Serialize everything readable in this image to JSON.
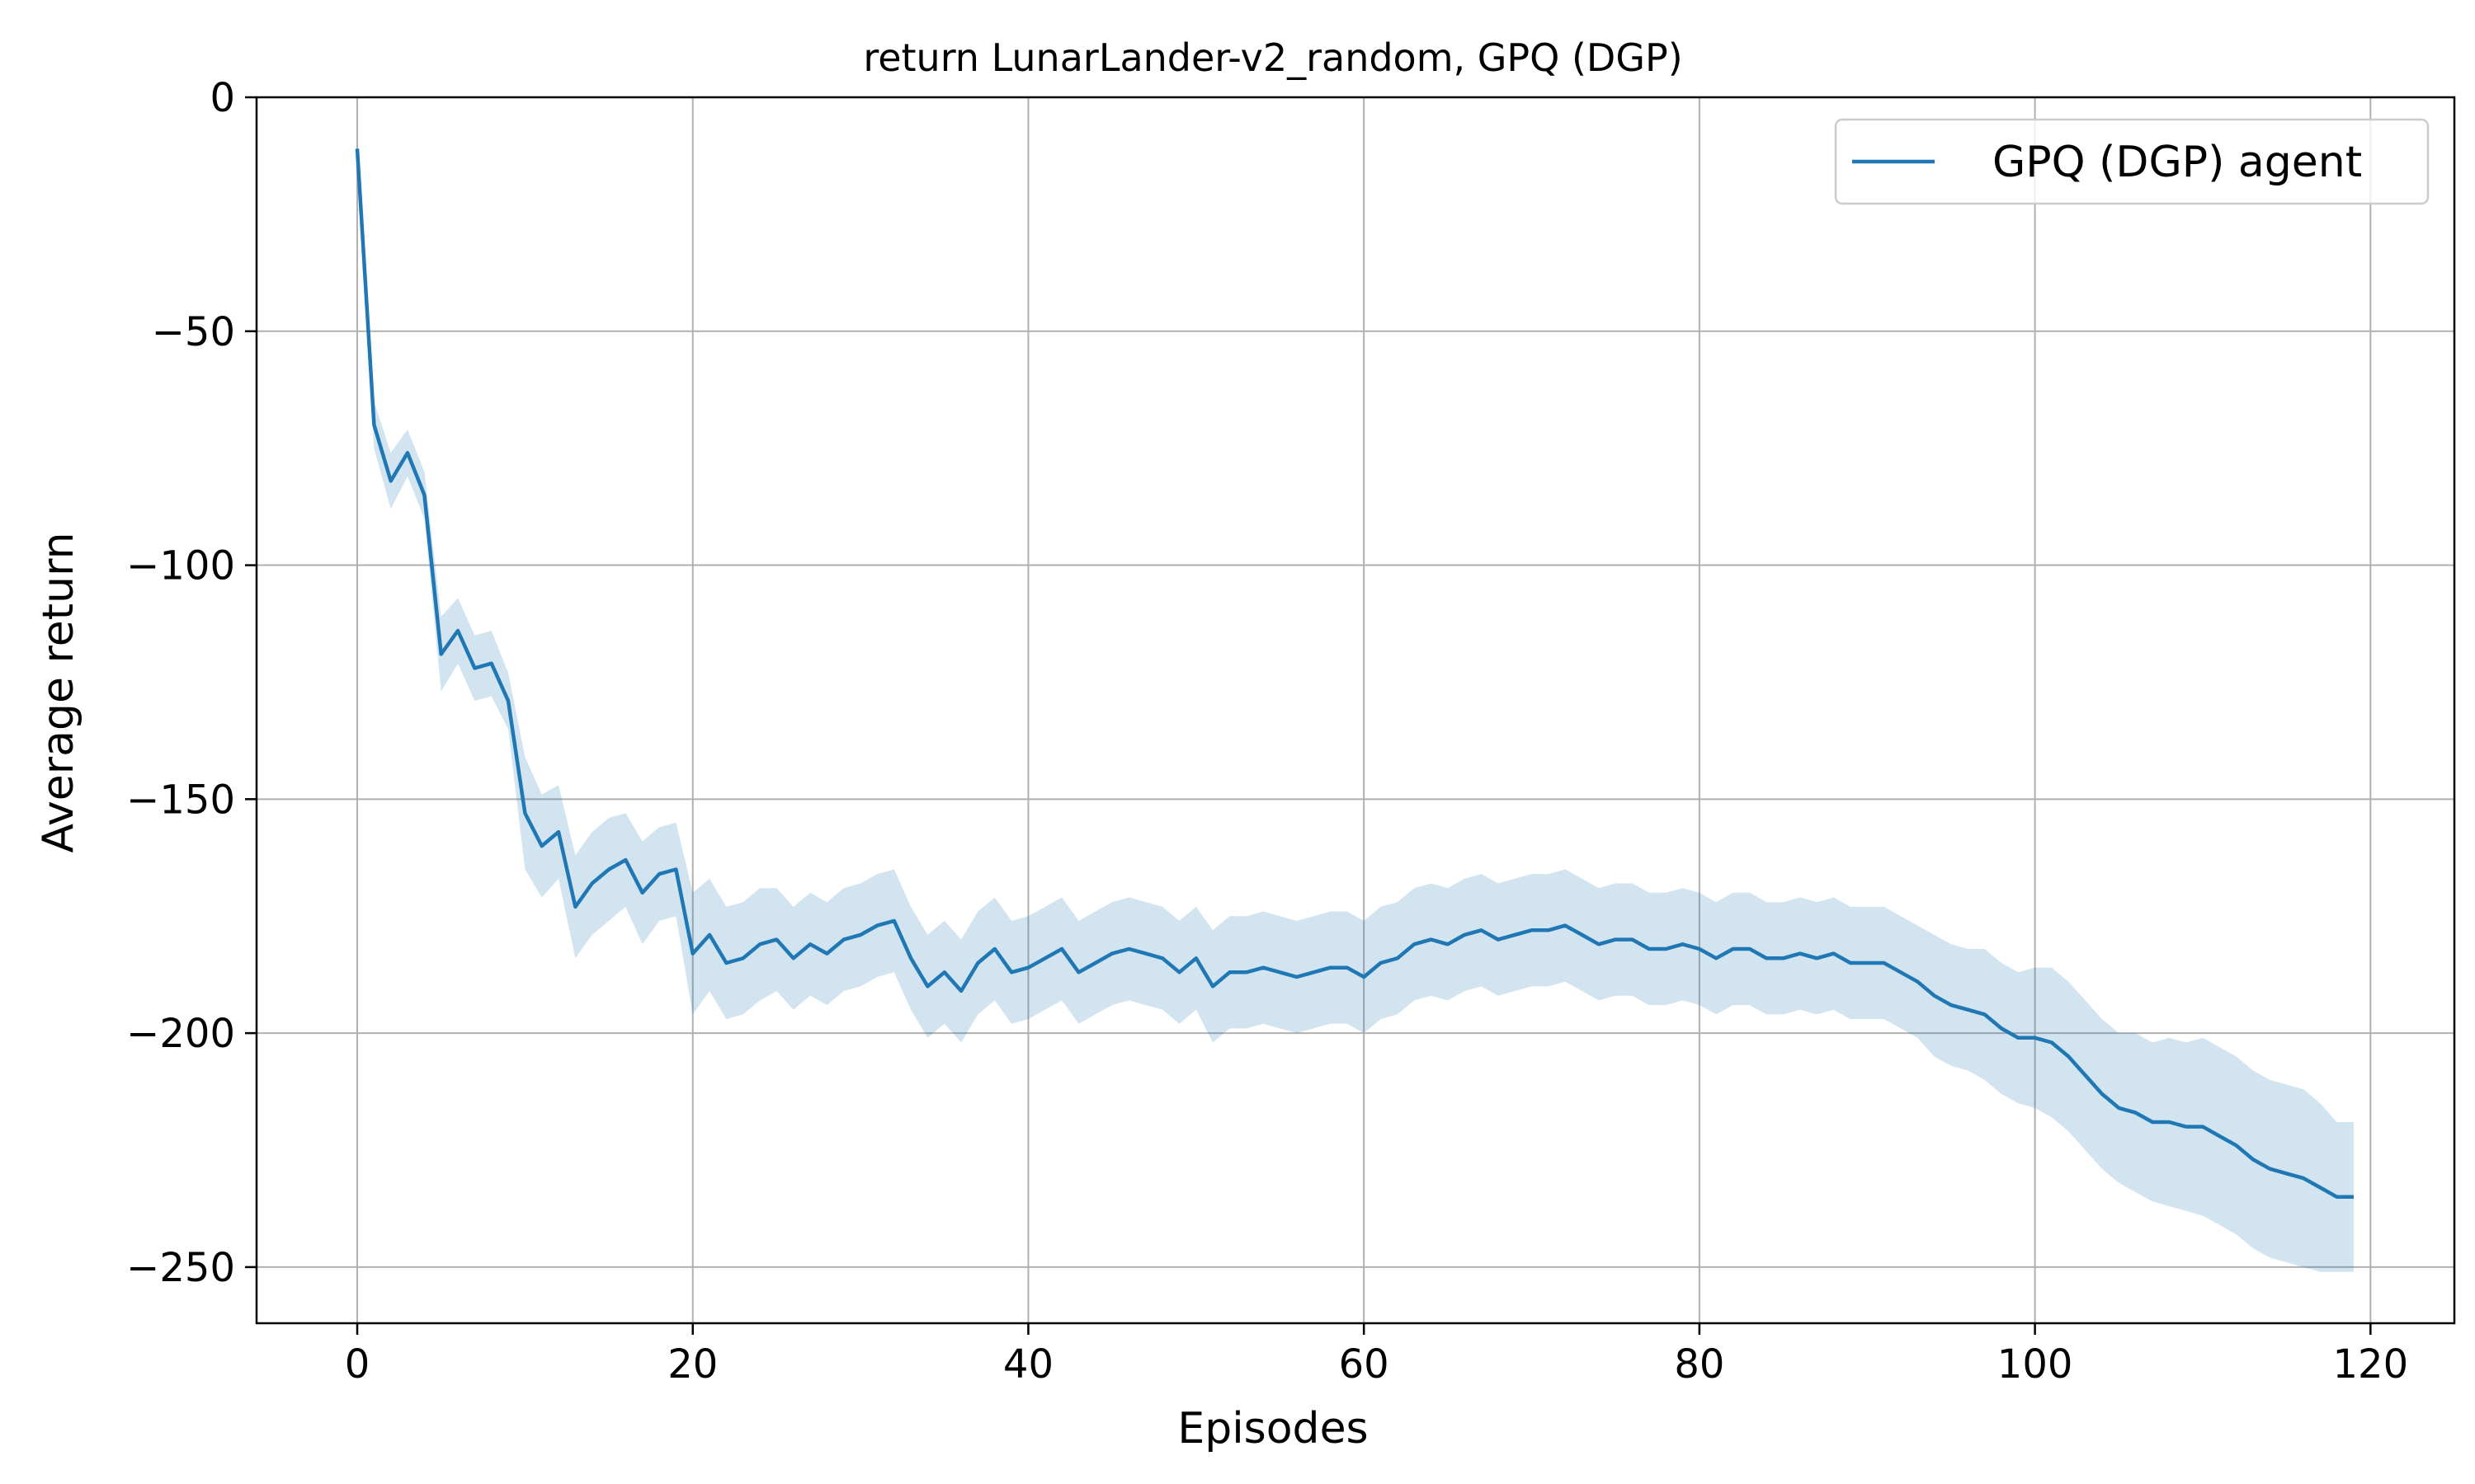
{
  "chart_data": {
    "type": "line",
    "title": "return LunarLander-v2_random, GPQ (DGP)",
    "xlabel": "Episodes",
    "ylabel": "Average return",
    "xlim": [
      -6,
      125
    ],
    "ylim": [
      -262,
      0
    ],
    "xticks": [
      0,
      20,
      40,
      60,
      80,
      100,
      120
    ],
    "yticks": [
      0,
      -50,
      -100,
      -150,
      -200,
      -250
    ],
    "xtick_labels": [
      "0",
      "20",
      "40",
      "60",
      "80",
      "100",
      "120"
    ],
    "ytick_labels": [
      "0",
      "−50",
      "−100",
      "−150",
      "−200",
      "−250"
    ],
    "grid": true,
    "legend_position": "top-right",
    "series": [
      {
        "name": "GPQ (DGP) agent",
        "color": "#1f77b4",
        "band_color": "#1f77b4",
        "x": [
          0,
          1,
          2,
          3,
          4,
          5,
          6,
          7,
          8,
          9,
          10,
          11,
          12,
          13,
          14,
          15,
          16,
          17,
          18,
          19,
          20,
          21,
          22,
          23,
          24,
          25,
          26,
          27,
          28,
          29,
          30,
          31,
          32,
          33,
          34,
          35,
          36,
          37,
          38,
          39,
          40,
          41,
          42,
          43,
          44,
          45,
          46,
          47,
          48,
          49,
          50,
          51,
          52,
          53,
          54,
          55,
          56,
          57,
          58,
          59,
          60,
          61,
          62,
          63,
          64,
          65,
          66,
          67,
          68,
          69,
          70,
          71,
          72,
          73,
          74,
          75,
          76,
          77,
          78,
          79,
          80,
          81,
          82,
          83,
          84,
          85,
          86,
          87,
          88,
          89,
          90,
          91,
          92,
          93,
          94,
          95,
          96,
          97,
          98,
          99,
          100,
          101,
          102,
          103,
          104,
          105,
          106,
          107,
          108,
          109,
          110,
          111,
          112,
          113,
          114,
          115,
          116,
          117,
          118,
          119
        ],
        "values": [
          -11,
          -70,
          -82,
          -76,
          -85,
          -119,
          -114,
          -122,
          -121,
          -129,
          -153,
          -160,
          -157,
          -173,
          -168,
          -165,
          -163,
          -170,
          -166,
          -165,
          -183,
          -179,
          -185,
          -184,
          -181,
          -180,
          -184,
          -181,
          -183,
          -180,
          -179,
          -177,
          -176,
          -184,
          -190,
          -187,
          -191,
          -185,
          -182,
          -187,
          -186,
          -184,
          -182,
          -187,
          -185,
          -183,
          -182,
          -183,
          -184,
          -187,
          -184,
          -190,
          -187,
          -187,
          -186,
          -187,
          -188,
          -187,
          -186,
          -186,
          -188,
          -185,
          -184,
          -181,
          -180,
          -181,
          -179,
          -178,
          -180,
          -179,
          -178,
          -178,
          -177,
          -179,
          -181,
          -180,
          -180,
          -182,
          -182,
          -181,
          -182,
          -184,
          -182,
          -182,
          -184,
          -184,
          -183,
          -184,
          -183,
          -185,
          -185,
          -185,
          -187,
          -189,
          -192,
          -194,
          -195,
          -196,
          -199,
          -201,
          -201,
          -202,
          -205,
          -209,
          -213,
          -216,
          -217,
          -219,
          -219,
          -220,
          -220,
          -222,
          -224,
          -227,
          -229,
          -230,
          -231,
          -233,
          -235,
          -235
        ],
        "lower": [
          -11,
          -75,
          -88,
          -81,
          -90,
          -127,
          -121,
          -129,
          -128,
          -135,
          -165,
          -171,
          -167,
          -184,
          -179,
          -176,
          -173,
          -181,
          -176,
          -175,
          -196,
          -191,
          -197,
          -196,
          -193,
          -191,
          -195,
          -192,
          -194,
          -191,
          -190,
          -188,
          -187,
          -195,
          -201,
          -198,
          -202,
          -196,
          -193,
          -198,
          -197,
          -195,
          -193,
          -198,
          -196,
          -194,
          -193,
          -194,
          -195,
          -198,
          -195,
          -202,
          -199,
          -199,
          -198,
          -199,
          -200,
          -199,
          -198,
          -198,
          -200,
          -197,
          -196,
          -193,
          -192,
          -193,
          -191,
          -190,
          -192,
          -191,
          -190,
          -190,
          -189,
          -191,
          -193,
          -192,
          -192,
          -194,
          -194,
          -193,
          -194,
          -196,
          -194,
          -194,
          -196,
          -196,
          -195,
          -196,
          -195,
          -197,
          -197,
          -197,
          -199,
          -201,
          -205,
          -207,
          -208,
          -210,
          -213,
          -215,
          -216,
          -218,
          -221,
          -225,
          -229,
          -232,
          -234,
          -236,
          -237,
          -238,
          -239,
          -241,
          -243,
          -246,
          -248,
          -249,
          -250,
          -251,
          -251,
          -251
        ],
        "upper": [
          -11,
          -65,
          -76,
          -71,
          -80,
          -111,
          -107,
          -115,
          -114,
          -123,
          -141,
          -149,
          -147,
          -162,
          -157,
          -154,
          -153,
          -159,
          -156,
          -155,
          -170,
          -167,
          -173,
          -172,
          -169,
          -169,
          -173,
          -170,
          -172,
          -169,
          -168,
          -166,
          -165,
          -173,
          -179,
          -176,
          -180,
          -174,
          -171,
          -176,
          -175,
          -173,
          -171,
          -176,
          -174,
          -172,
          -171,
          -172,
          -173,
          -176,
          -173,
          -178,
          -175,
          -175,
          -174,
          -175,
          -176,
          -175,
          -174,
          -174,
          -176,
          -173,
          -172,
          -169,
          -168,
          -169,
          -167,
          -166,
          -168,
          -167,
          -166,
          -166,
          -165,
          -167,
          -169,
          -168,
          -168,
          -170,
          -170,
          -169,
          -170,
          -172,
          -170,
          -170,
          -172,
          -172,
          -171,
          -172,
          -171,
          -173,
          -173,
          -173,
          -175,
          -177,
          -179,
          -181,
          -182,
          -182,
          -185,
          -187,
          -186,
          -186,
          -189,
          -193,
          -197,
          -200,
          -200,
          -202,
          -201,
          -202,
          -201,
          -203,
          -205,
          -208,
          -210,
          -211,
          -212,
          -215,
          -219,
          -219
        ]
      }
    ]
  }
}
